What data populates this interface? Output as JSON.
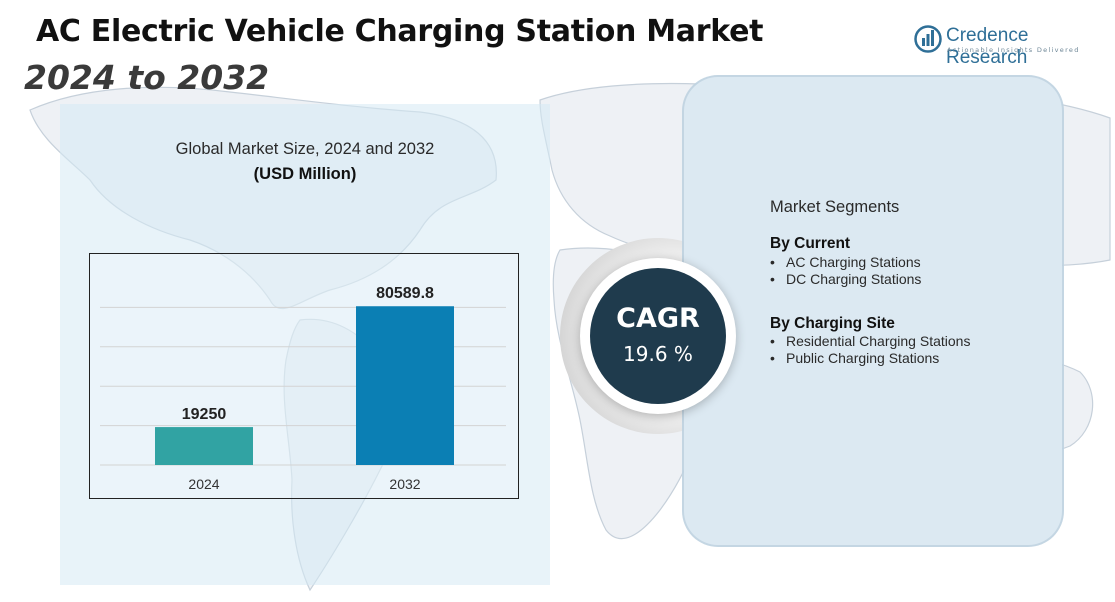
{
  "header": {
    "title": "AC Electric Vehicle Charging Station Market",
    "subtitle": "2024 to 2032"
  },
  "brand": {
    "name": "Credence Research",
    "tagline": "Actionable Insights Delivered",
    "color": "#2f6f97"
  },
  "chart_heading": "Global Market Size, 2024 and 2032",
  "chart_units": "(USD Million)",
  "chart_data": {
    "type": "bar",
    "categories": [
      "2024",
      "2032"
    ],
    "values": [
      19250,
      80589.8
    ],
    "value_labels": [
      "19250",
      "80589.8"
    ],
    "colors": [
      "#31a3a3",
      "#0b7fb4"
    ],
    "ylim": [
      0,
      100000
    ],
    "grid": true,
    "title": "Global Market Size, 2024 and 2032",
    "ylabel": "(USD Million)"
  },
  "cagr": {
    "label": "CAGR",
    "value": "19.6 %",
    "color": "#1f3b4d"
  },
  "segments": {
    "title": "Market Segments",
    "groups": [
      {
        "title": "By Current",
        "items": [
          "AC Charging Stations",
          "DC Charging Stations"
        ]
      },
      {
        "title": "By Charging Site",
        "items": [
          "Residential Charging Stations",
          "Public Charging Stations"
        ]
      }
    ]
  }
}
